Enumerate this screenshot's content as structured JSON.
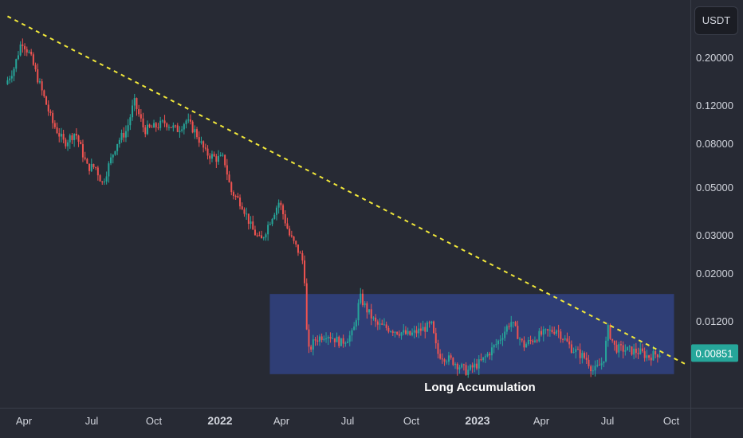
{
  "currency": "USDT",
  "annotation_label": "Long Accumulation",
  "last_price": "0.00851",
  "colors": {
    "background": "#272a34",
    "up": "#26a69a",
    "down": "#ef5350",
    "trendline": "#f2e83a",
    "zone": "#2f3f7a",
    "badge": "#26a69a"
  },
  "chart_data": {
    "type": "candlestick",
    "title": "",
    "x_axis": {
      "labels": [
        "Apr",
        "Jul",
        "Oct",
        "2022",
        "Apr",
        "Jul",
        "Oct",
        "2023",
        "Apr",
        "Jul",
        "Oct"
      ],
      "label_dates": [
        "2021-04-01",
        "2021-07-01",
        "2021-10-01",
        "2022-01-01",
        "2022-04-01",
        "2022-07-01",
        "2022-10-01",
        "2023-01-01",
        "2023-04-01",
        "2023-07-01",
        "2023-10-01"
      ],
      "bold": [
        "2022",
        "2023"
      ]
    },
    "y_axis": {
      "scale": "log",
      "range": [
        0.0055,
        0.31
      ],
      "tick_values": [
        0.2,
        0.12,
        0.08,
        0.05,
        0.03,
        0.02,
        0.012
      ],
      "tick_labels": [
        "0.20000",
        "0.12000",
        "0.08000",
        "0.05000",
        "0.03000",
        "0.02000",
        "0.01200"
      ]
    },
    "price_path": [
      {
        "date": "2021-03-10",
        "price": 0.15
      },
      {
        "date": "2021-03-22",
        "price": 0.18
      },
      {
        "date": "2021-04-01",
        "price": 0.24
      },
      {
        "date": "2021-04-12",
        "price": 0.205
      },
      {
        "date": "2021-04-25",
        "price": 0.15
      },
      {
        "date": "2021-05-12",
        "price": 0.1
      },
      {
        "date": "2021-05-28",
        "price": 0.08
      },
      {
        "date": "2021-06-12",
        "price": 0.09
      },
      {
        "date": "2021-06-28",
        "price": 0.062
      },
      {
        "date": "2021-07-10",
        "price": 0.062
      },
      {
        "date": "2021-07-20",
        "price": 0.052
      },
      {
        "date": "2021-08-10",
        "price": 0.08
      },
      {
        "date": "2021-08-25",
        "price": 0.092
      },
      {
        "date": "2021-09-05",
        "price": 0.125
      },
      {
        "date": "2021-09-20",
        "price": 0.092
      },
      {
        "date": "2021-10-05",
        "price": 0.095
      },
      {
        "date": "2021-10-20",
        "price": 0.1
      },
      {
        "date": "2021-11-05",
        "price": 0.092
      },
      {
        "date": "2021-11-18",
        "price": 0.102
      },
      {
        "date": "2021-12-01",
        "price": 0.09
      },
      {
        "date": "2021-12-15",
        "price": 0.072
      },
      {
        "date": "2021-12-30",
        "price": 0.068
      },
      {
        "date": "2022-01-10",
        "price": 0.068
      },
      {
        "date": "2022-01-20",
        "price": 0.048
      },
      {
        "date": "2022-02-05",
        "price": 0.042
      },
      {
        "date": "2022-02-20",
        "price": 0.032
      },
      {
        "date": "2022-03-05",
        "price": 0.028
      },
      {
        "date": "2022-03-20",
        "price": 0.036
      },
      {
        "date": "2022-04-01",
        "price": 0.043
      },
      {
        "date": "2022-04-15",
        "price": 0.03
      },
      {
        "date": "2022-04-28",
        "price": 0.025
      },
      {
        "date": "2022-05-05",
        "price": 0.022
      },
      {
        "date": "2022-05-10",
        "price": 0.0085
      },
      {
        "date": "2022-05-20",
        "price": 0.0098
      },
      {
        "date": "2022-06-05",
        "price": 0.0105
      },
      {
        "date": "2022-06-25",
        "price": 0.0095
      },
      {
        "date": "2022-07-12",
        "price": 0.0105
      },
      {
        "date": "2022-07-22",
        "price": 0.0155
      },
      {
        "date": "2022-08-01",
        "price": 0.0135
      },
      {
        "date": "2022-08-15",
        "price": 0.0115
      },
      {
        "date": "2022-09-05",
        "price": 0.011
      },
      {
        "date": "2022-10-01",
        "price": 0.0103
      },
      {
        "date": "2022-11-01",
        "price": 0.0115
      },
      {
        "date": "2022-11-09",
        "price": 0.0085
      },
      {
        "date": "2022-12-01",
        "price": 0.0078
      },
      {
        "date": "2022-12-20",
        "price": 0.007
      },
      {
        "date": "2023-01-10",
        "price": 0.0078
      },
      {
        "date": "2023-02-01",
        "price": 0.0095
      },
      {
        "date": "2023-02-20",
        "price": 0.012
      },
      {
        "date": "2023-03-10",
        "price": 0.0092
      },
      {
        "date": "2023-04-01",
        "price": 0.0103
      },
      {
        "date": "2023-04-25",
        "price": 0.011
      },
      {
        "date": "2023-05-15",
        "price": 0.009
      },
      {
        "date": "2023-06-05",
        "price": 0.008
      },
      {
        "date": "2023-06-15",
        "price": 0.007
      },
      {
        "date": "2023-06-28",
        "price": 0.0078
      },
      {
        "date": "2023-07-05",
        "price": 0.011
      },
      {
        "date": "2023-07-15",
        "price": 0.009
      },
      {
        "date": "2023-08-01",
        "price": 0.0088
      },
      {
        "date": "2023-08-20",
        "price": 0.0086
      },
      {
        "date": "2023-09-01",
        "price": 0.0082
      },
      {
        "date": "2023-09-15",
        "price": 0.00851
      }
    ],
    "trendline": {
      "style": "dashed",
      "points": [
        {
          "date": "2021-03-10",
          "price": 0.31
        },
        {
          "date": "2023-10-01",
          "price": 0.00818
        }
      ]
    },
    "accumulation_zone": {
      "label": "Long Accumulation",
      "date_range": [
        "2022-03-15",
        "2023-10-05"
      ],
      "price_range": [
        0.0068,
        0.016
      ]
    },
    "last_price": 0.00851
  }
}
